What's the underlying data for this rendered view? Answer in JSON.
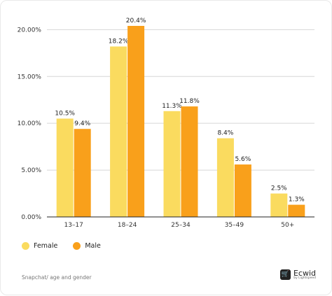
{
  "chart_data": {
    "type": "bar",
    "categories": [
      "13–17",
      "18–24",
      "25–34",
      "35–49",
      "50+"
    ],
    "series": [
      {
        "name": "Female",
        "color": "#FADB5F",
        "values": [
          10.5,
          18.2,
          11.3,
          8.4,
          2.5
        ],
        "labels": [
          "10.5%",
          "18.2%",
          "11.3%",
          "8.4%",
          "2.5%"
        ]
      },
      {
        "name": "Male",
        "color": "#F9A01B",
        "values": [
          9.4,
          20.4,
          11.8,
          5.6,
          1.3
        ],
        "labels": [
          "9.4%",
          "20.4%",
          "11.8%",
          "5.6%",
          "1.3%"
        ]
      }
    ],
    "yticks": [
      0,
      5,
      10,
      15,
      20
    ],
    "ytick_labels": [
      "0.00%",
      "5.00%",
      "10.00%",
      "15.00%",
      "20.00%"
    ],
    "ylim": [
      0,
      20.4
    ],
    "grid": true,
    "legend_position": "bottom-left"
  },
  "legend": {
    "female": "Female",
    "male": "Male"
  },
  "source": "Snapchat/ age and gender",
  "brand": {
    "name": "Ecwid",
    "sub": "by Lightspeed"
  }
}
